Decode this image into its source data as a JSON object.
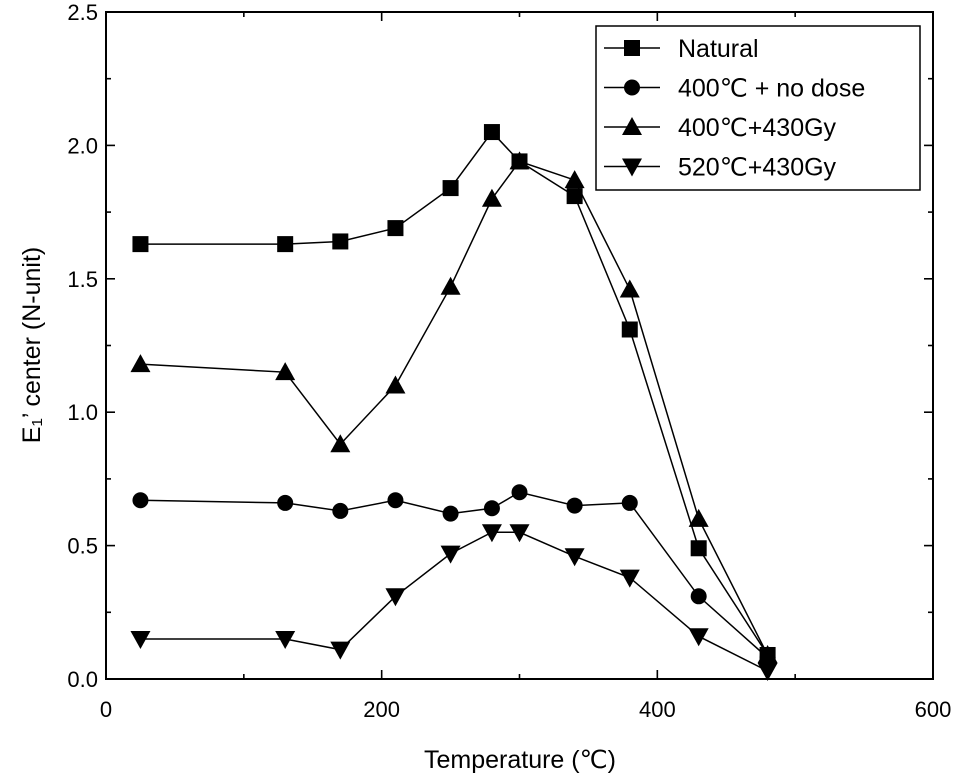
{
  "chart_data": {
    "type": "line",
    "xlabel": "Temperature (℃)",
    "ylabel": "E₁’ center (N-unit)",
    "xlim": [
      0,
      600
    ],
    "ylim": [
      0,
      2.5
    ],
    "xticks": [
      0,
      200,
      400,
      600
    ],
    "yticks": [
      0.0,
      0.5,
      1.0,
      1.5,
      2.0,
      2.5
    ],
    "xtick_labels": [
      "0",
      "200",
      "400",
      "600"
    ],
    "ytick_labels": [
      "0.0",
      "0.5",
      "1.0",
      "1.5",
      "2.0",
      "2.5"
    ],
    "grid": false,
    "legend_position": "top-right",
    "series": [
      {
        "name": "Natural",
        "marker": "square",
        "x": [
          25,
          130,
          170,
          210,
          250,
          280,
          300,
          340,
          380,
          430,
          480
        ],
        "y": [
          1.63,
          1.63,
          1.64,
          1.69,
          1.84,
          2.05,
          1.94,
          1.81,
          1.31,
          0.49,
          0.09
        ]
      },
      {
        "name": "400℃ + no dose",
        "marker": "circle",
        "x": [
          25,
          130,
          170,
          210,
          250,
          280,
          300,
          340,
          380,
          430,
          480
        ],
        "y": [
          0.67,
          0.66,
          0.63,
          0.67,
          0.62,
          0.64,
          0.7,
          0.65,
          0.66,
          0.31,
          0.08
        ]
      },
      {
        "name": "400℃+430Gy",
        "marker": "triangle-up",
        "x": [
          25,
          130,
          170,
          210,
          250,
          280,
          300,
          340,
          380,
          430,
          480
        ],
        "y": [
          1.18,
          1.15,
          0.88,
          1.1,
          1.47,
          1.8,
          1.94,
          1.87,
          1.46,
          0.6,
          0.09
        ]
      },
      {
        "name": "520℃+430Gy",
        "marker": "triangle-down",
        "x": [
          25,
          130,
          170,
          210,
          250,
          280,
          300,
          340,
          380,
          430,
          480
        ],
        "y": [
          0.15,
          0.15,
          0.11,
          0.31,
          0.47,
          0.55,
          0.55,
          0.46,
          0.38,
          0.16,
          0.03
        ]
      }
    ]
  }
}
